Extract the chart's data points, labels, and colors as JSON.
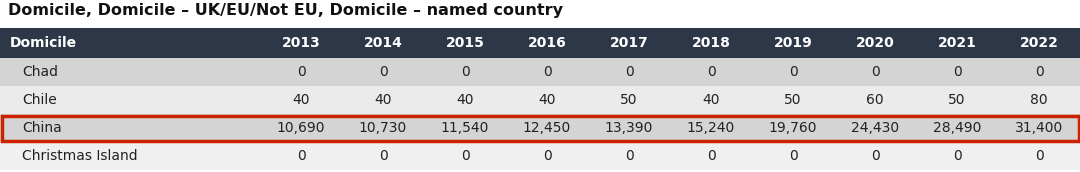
{
  "title": "Domicile, Domicile – UK/EU/Not EU, Domicile – named country",
  "columns": [
    "Domicile",
    "2013",
    "2014",
    "2015",
    "2016",
    "2017",
    "2018",
    "2019",
    "2020",
    "2021",
    "2022"
  ],
  "rows": [
    [
      "Chad",
      "0",
      "0",
      "0",
      "0",
      "0",
      "0",
      "0",
      "0",
      "0",
      "0"
    ],
    [
      "Chile",
      "40",
      "40",
      "40",
      "40",
      "50",
      "40",
      "50",
      "60",
      "50",
      "80"
    ],
    [
      "China",
      "10,690",
      "10,730",
      "11,540",
      "12,450",
      "13,390",
      "15,240",
      "19,760",
      "24,430",
      "28,490",
      "31,400"
    ],
    [
      "Christmas Island",
      "0",
      "0",
      "0",
      "0",
      "0",
      "0",
      "0",
      "0",
      "0",
      "0"
    ]
  ],
  "header_bg": "#2d3748",
  "header_fg": "#ffffff",
  "row_bg_dark": "#d0d0d0",
  "row_bg_light": "#ebebeb",
  "row_bg_white": "#f5f5f5",
  "row_bgs": [
    "#d4d4d4",
    "#ebebeb",
    "#d4d4d4",
    "#f0f0f0"
  ],
  "highlight_row": 2,
  "highlight_border_color": "#cc2200",
  "indented_rows": [
    0,
    1,
    2,
    3
  ],
  "title_fontsize": 11.5,
  "header_fontsize": 10,
  "cell_fontsize": 10,
  "fig_width": 10.8,
  "fig_height": 1.72,
  "dpi": 100
}
